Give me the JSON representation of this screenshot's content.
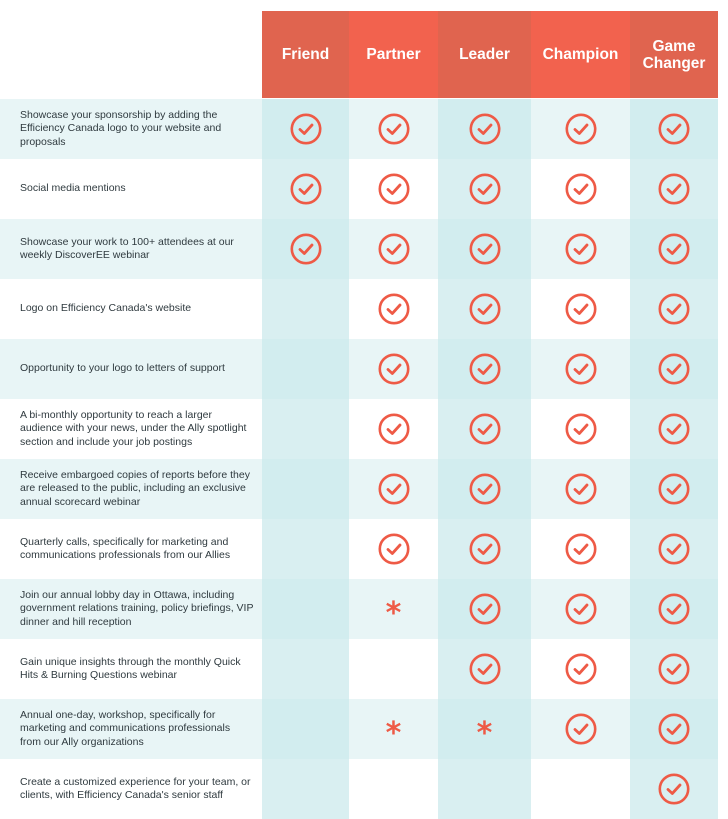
{
  "tiers": [
    "Friend",
    "Partner",
    "Leader",
    "Champion",
    "Game\nChanger"
  ],
  "colors": {
    "header": "#f2624e",
    "header_alt": "#e0644f",
    "accent": "#ee5a46",
    "tint": "#e8f5f6",
    "teal": "#d2edef"
  },
  "rows": [
    {
      "label": "Showcase your sponsorship by adding the Efficiency Canada logo to your website and proposals",
      "marks": [
        "check",
        "check",
        "check",
        "check",
        "check"
      ]
    },
    {
      "label": "Social media mentions",
      "marks": [
        "check",
        "check",
        "check",
        "check",
        "check"
      ]
    },
    {
      "label": "Showcase your work to 100+ attendees at our weekly DiscoverEE webinar",
      "marks": [
        "check",
        "check",
        "check",
        "check",
        "check"
      ]
    },
    {
      "label": "Logo on Efficiency Canada's website",
      "marks": [
        "",
        "check",
        "check",
        "check",
        "check"
      ]
    },
    {
      "label": "Opportunity to your logo to letters of support",
      "marks": [
        "",
        "check",
        "check",
        "check",
        "check"
      ]
    },
    {
      "label": "A bi-monthly opportunity to reach a larger audience with your news, under the Ally spotlight section and include your job postings",
      "marks": [
        "",
        "check",
        "check",
        "check",
        "check"
      ]
    },
    {
      "label": "Receive embargoed copies of reports before they are released to the public, including an exclusive annual scorecard webinar",
      "marks": [
        "",
        "check",
        "check",
        "check",
        "check"
      ]
    },
    {
      "label": "Quarterly calls, specifically for marketing and communications professionals from our Allies",
      "marks": [
        "",
        "check",
        "check",
        "check",
        "check"
      ]
    },
    {
      "label": "Join our annual lobby day in Ottawa, including government relations training, policy briefings, VIP dinner and hill reception",
      "marks": [
        "",
        "*",
        "check",
        "check",
        "check"
      ]
    },
    {
      "label": "Gain unique insights through the monthly Quick Hits & Burning Questions webinar",
      "marks": [
        "",
        "",
        "check",
        "check",
        "check"
      ]
    },
    {
      "label": "Annual one-day, workshop, specifically for marketing and communications professionals from our Ally organizations",
      "marks": [
        "",
        "*",
        "*",
        "check",
        "check"
      ]
    },
    {
      "label": "Create a customized experience for your team, or clients, with Efficiency Canada's senior staff",
      "marks": [
        "",
        "",
        "",
        "",
        "check"
      ]
    }
  ]
}
